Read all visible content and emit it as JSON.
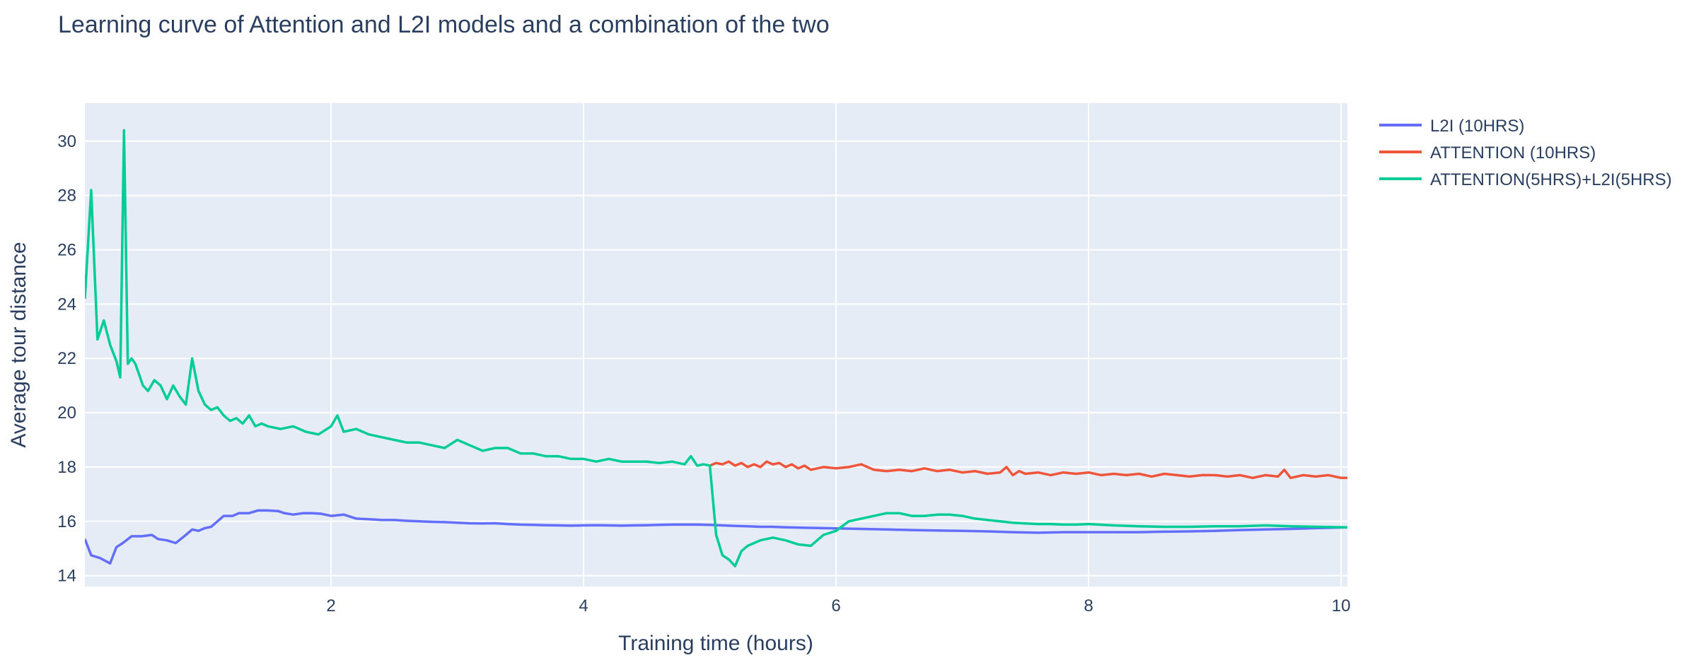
{
  "chart_data": {
    "type": "line",
    "title": "Learning curve of Attention and L2I models and a combination of the two",
    "xlabel": "Training time (hours)",
    "ylabel": "Average tour distance",
    "xlim": [
      0.05,
      10.05
    ],
    "ylim": [
      13.6,
      31.4
    ],
    "x_ticks": [
      2,
      4,
      6,
      8,
      10
    ],
    "y_ticks": [
      14,
      16,
      18,
      20,
      22,
      24,
      26,
      28,
      30
    ],
    "grid": true,
    "legend_position": "top-right",
    "colors": {
      "plot_bg": "#e5ecf6",
      "grid": "#ffffff",
      "text": "#2a3f5f"
    },
    "series": [
      {
        "name": "L2I (10HRS)",
        "color": "#636efa",
        "x": [
          0.05,
          0.1,
          0.17,
          0.25,
          0.3,
          0.35,
          0.42,
          0.5,
          0.58,
          0.63,
          0.7,
          0.77,
          0.85,
          0.9,
          0.95,
          1.0,
          1.05,
          1.1,
          1.15,
          1.22,
          1.27,
          1.35,
          1.42,
          1.5,
          1.58,
          1.63,
          1.7,
          1.78,
          1.85,
          1.92,
          2.0,
          2.1,
          2.2,
          2.3,
          2.4,
          2.5,
          2.6,
          2.7,
          2.8,
          2.9,
          3.0,
          3.1,
          3.2,
          3.3,
          3.4,
          3.5,
          3.6,
          3.7,
          3.8,
          3.9,
          4.0,
          4.1,
          4.2,
          4.3,
          4.4,
          4.5,
          4.6,
          4.7,
          4.8,
          4.9,
          5.0,
          5.1,
          5.2,
          5.3,
          5.4,
          5.5,
          5.6,
          5.7,
          5.8,
          5.9,
          6.0,
          6.2,
          6.4,
          6.6,
          6.8,
          7.0,
          7.2,
          7.4,
          7.6,
          7.8,
          8.0,
          8.2,
          8.4,
          8.6,
          8.8,
          9.0,
          9.2,
          9.4,
          9.6,
          9.8,
          10.05
        ],
        "y": [
          15.35,
          14.75,
          14.65,
          14.45,
          15.05,
          15.2,
          15.45,
          15.45,
          15.5,
          15.35,
          15.3,
          15.2,
          15.5,
          15.7,
          15.65,
          15.75,
          15.8,
          16.0,
          16.2,
          16.2,
          16.3,
          16.3,
          16.4,
          16.4,
          16.38,
          16.3,
          16.25,
          16.3,
          16.3,
          16.28,
          16.2,
          16.25,
          16.1,
          16.08,
          16.05,
          16.05,
          16.02,
          16.0,
          15.98,
          15.97,
          15.95,
          15.93,
          15.92,
          15.93,
          15.9,
          15.88,
          15.87,
          15.86,
          15.85,
          15.84,
          15.85,
          15.86,
          15.85,
          15.84,
          15.85,
          15.86,
          15.87,
          15.88,
          15.88,
          15.88,
          15.87,
          15.85,
          15.83,
          15.82,
          15.8,
          15.8,
          15.78,
          15.77,
          15.76,
          15.75,
          15.74,
          15.72,
          15.7,
          15.68,
          15.66,
          15.65,
          15.63,
          15.6,
          15.58,
          15.6,
          15.6,
          15.6,
          15.6,
          15.62,
          15.63,
          15.65,
          15.68,
          15.7,
          15.72,
          15.75,
          15.78
        ]
      },
      {
        "name": "ATTENTION (10HRS)",
        "color": "#ef553b",
        "x": [
          5.0,
          5.05,
          5.1,
          5.15,
          5.2,
          5.25,
          5.3,
          5.35,
          5.4,
          5.45,
          5.5,
          5.55,
          5.6,
          5.65,
          5.7,
          5.75,
          5.8,
          5.9,
          6.0,
          6.1,
          6.2,
          6.3,
          6.4,
          6.5,
          6.6,
          6.7,
          6.8,
          6.9,
          7.0,
          7.1,
          7.2,
          7.3,
          7.35,
          7.4,
          7.45,
          7.5,
          7.6,
          7.7,
          7.8,
          7.9,
          8.0,
          8.1,
          8.2,
          8.3,
          8.4,
          8.5,
          8.6,
          8.7,
          8.8,
          8.9,
          9.0,
          9.1,
          9.2,
          9.3,
          9.4,
          9.5,
          9.55,
          9.6,
          9.7,
          9.8,
          9.9,
          10.0,
          10.05
        ],
        "y": [
          18.05,
          18.15,
          18.1,
          18.2,
          18.05,
          18.15,
          18.0,
          18.1,
          18.0,
          18.2,
          18.1,
          18.15,
          18.0,
          18.1,
          17.95,
          18.05,
          17.9,
          18.0,
          17.95,
          18.0,
          18.1,
          17.9,
          17.85,
          17.9,
          17.85,
          17.95,
          17.85,
          17.9,
          17.8,
          17.85,
          17.75,
          17.8,
          18.0,
          17.7,
          17.85,
          17.75,
          17.8,
          17.7,
          17.8,
          17.75,
          17.8,
          17.7,
          17.75,
          17.7,
          17.75,
          17.65,
          17.75,
          17.7,
          17.65,
          17.7,
          17.7,
          17.65,
          17.7,
          17.6,
          17.7,
          17.65,
          17.9,
          17.6,
          17.7,
          17.65,
          17.7,
          17.6,
          17.6
        ]
      },
      {
        "name": "ATTENTION(5HRS)+L2I(5HRS)",
        "color": "#00cc96",
        "x": [
          0.05,
          0.1,
          0.15,
          0.2,
          0.25,
          0.3,
          0.33,
          0.36,
          0.39,
          0.42,
          0.45,
          0.48,
          0.51,
          0.55,
          0.6,
          0.65,
          0.7,
          0.75,
          0.8,
          0.85,
          0.9,
          0.95,
          1.0,
          1.05,
          1.1,
          1.15,
          1.2,
          1.25,
          1.3,
          1.35,
          1.4,
          1.45,
          1.5,
          1.6,
          1.7,
          1.8,
          1.9,
          2.0,
          2.05,
          2.1,
          2.2,
          2.3,
          2.4,
          2.5,
          2.6,
          2.7,
          2.8,
          2.9,
          3.0,
          3.1,
          3.2,
          3.3,
          3.4,
          3.5,
          3.6,
          3.7,
          3.8,
          3.9,
          4.0,
          4.1,
          4.2,
          4.3,
          4.4,
          4.5,
          4.6,
          4.7,
          4.8,
          4.85,
          4.9,
          4.95,
          5.0,
          5.05,
          5.1,
          5.15,
          5.2,
          5.25,
          5.3,
          5.4,
          5.5,
          5.6,
          5.7,
          5.8,
          5.9,
          6.0,
          6.1,
          6.2,
          6.3,
          6.4,
          6.5,
          6.6,
          6.7,
          6.8,
          6.9,
          7.0,
          7.1,
          7.2,
          7.3,
          7.4,
          7.5,
          7.6,
          7.7,
          7.8,
          7.9,
          8.0,
          8.2,
          8.4,
          8.6,
          8.8,
          9.0,
          9.2,
          9.4,
          9.6,
          9.8,
          10.05
        ],
        "y": [
          24.2,
          28.2,
          22.7,
          23.4,
          22.5,
          21.9,
          21.3,
          30.4,
          21.8,
          22.0,
          21.8,
          21.4,
          21.0,
          20.8,
          21.2,
          21.0,
          20.5,
          21.0,
          20.6,
          20.3,
          22.0,
          20.8,
          20.3,
          20.1,
          20.2,
          19.9,
          19.7,
          19.8,
          19.6,
          19.9,
          19.5,
          19.6,
          19.5,
          19.4,
          19.5,
          19.3,
          19.2,
          19.5,
          19.9,
          19.3,
          19.4,
          19.2,
          19.1,
          19.0,
          18.9,
          18.9,
          18.8,
          18.7,
          19.0,
          18.8,
          18.6,
          18.7,
          18.7,
          18.5,
          18.5,
          18.4,
          18.4,
          18.3,
          18.3,
          18.2,
          18.3,
          18.2,
          18.2,
          18.2,
          18.15,
          18.2,
          18.1,
          18.4,
          18.05,
          18.1,
          18.05,
          15.5,
          14.75,
          14.6,
          14.35,
          14.9,
          15.1,
          15.3,
          15.4,
          15.3,
          15.15,
          15.1,
          15.5,
          15.65,
          16.0,
          16.1,
          16.2,
          16.3,
          16.3,
          16.2,
          16.2,
          16.25,
          16.25,
          16.2,
          16.1,
          16.05,
          16.0,
          15.95,
          15.92,
          15.9,
          15.9,
          15.88,
          15.88,
          15.9,
          15.85,
          15.82,
          15.8,
          15.8,
          15.82,
          15.82,
          15.85,
          15.82,
          15.8,
          15.78
        ]
      }
    ]
  }
}
